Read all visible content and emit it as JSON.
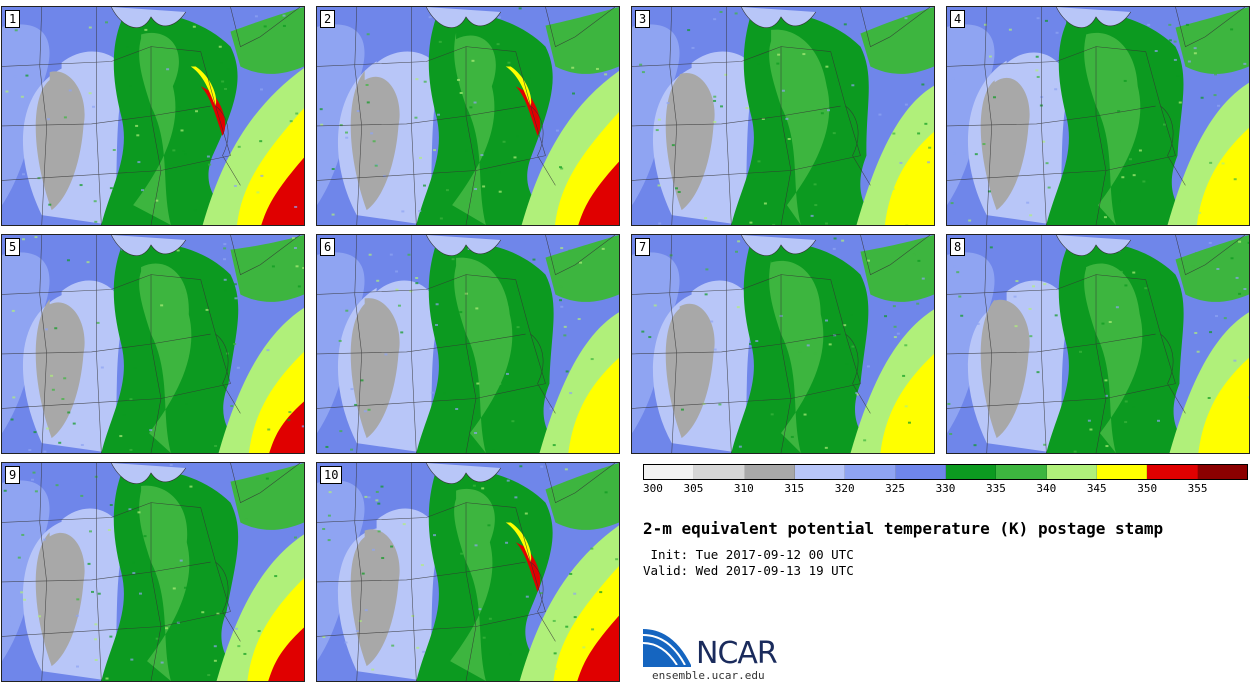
{
  "stamps": [
    {
      "num": "1",
      "warm": 0.95
    },
    {
      "num": "2",
      "warm": 0.85
    },
    {
      "num": "3",
      "warm": 0.35
    },
    {
      "num": "4",
      "warm": 0.45
    },
    {
      "num": "5",
      "warm": 0.55
    },
    {
      "num": "6",
      "warm": 0.4
    },
    {
      "num": "7",
      "warm": 0.5
    },
    {
      "num": "8",
      "warm": 0.4
    },
    {
      "num": "9",
      "warm": 0.6
    },
    {
      "num": "10",
      "warm": 0.9
    }
  ],
  "colorbar": {
    "colors": [
      "#f2f2f2",
      "#d6d6d6",
      "#a8a8a8",
      "#b8c6f8",
      "#8fa4f2",
      "#6f86ea",
      "#0c9a20",
      "#3db53f",
      "#b0f07a",
      "#ffff00",
      "#e00000",
      "#8b0000"
    ],
    "ticks": [
      "300",
      "305",
      "310",
      "315",
      "320",
      "325",
      "330",
      "335",
      "340",
      "345",
      "350",
      "355"
    ]
  },
  "title": "2-m equivalent potential temperature (K) postage stamp",
  "init": " Init: Tue 2017-09-12 00 UTC",
  "valid": "Valid: Wed 2017-09-13 19 UTC",
  "logo": {
    "text": "NCAR",
    "url": "ensemble.ucar.edu"
  }
}
